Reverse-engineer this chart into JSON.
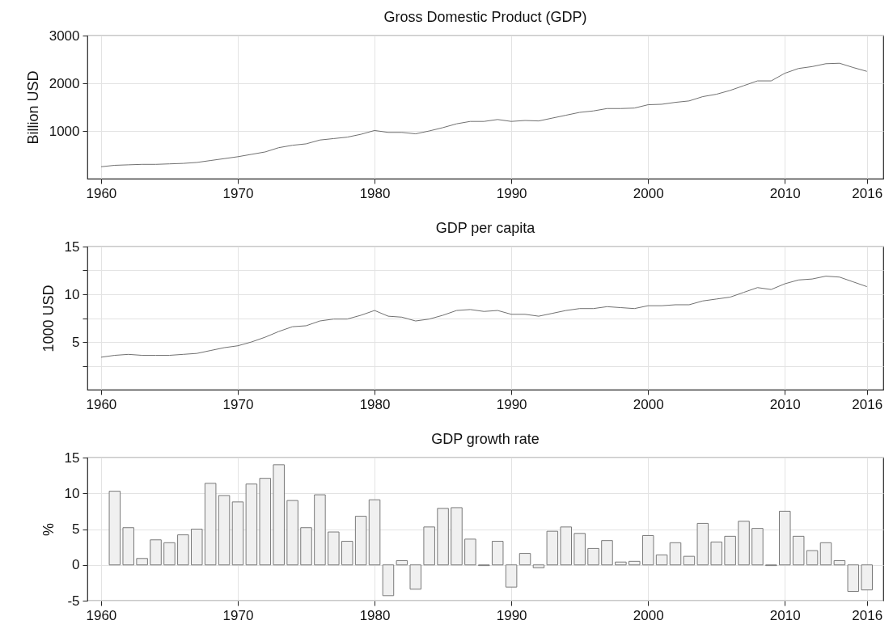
{
  "chart_data": [
    {
      "type": "line",
      "title": "Gross Domestic Product (GDP)",
      "ylabel": "Billion USD",
      "x": [
        1960,
        1961,
        1962,
        1963,
        1964,
        1965,
        1966,
        1967,
        1968,
        1969,
        1970,
        1971,
        1972,
        1973,
        1974,
        1975,
        1976,
        1977,
        1978,
        1979,
        1980,
        1981,
        1982,
        1983,
        1984,
        1985,
        1986,
        1987,
        1988,
        1989,
        1990,
        1991,
        1992,
        1993,
        1994,
        1995,
        1996,
        1997,
        1998,
        1999,
        2000,
        2001,
        2002,
        2003,
        2004,
        2005,
        2006,
        2007,
        2008,
        2009,
        2010,
        2011,
        2012,
        2013,
        2014,
        2015,
        2016
      ],
      "series": [
        {
          "color": "#707070",
          "values": [
            250,
            280,
            290,
            300,
            300,
            310,
            320,
            340,
            380,
            420,
            460,
            510,
            560,
            650,
            700,
            730,
            810,
            840,
            870,
            930,
            1010,
            970,
            970,
            940,
            1000,
            1070,
            1150,
            1200,
            1200,
            1240,
            1200,
            1220,
            1210,
            1270,
            1330,
            1390,
            1420,
            1470,
            1470,
            1480,
            1550,
            1560,
            1600,
            1630,
            1720,
            1770,
            1850,
            1950,
            2050,
            2050,
            2210,
            2310,
            2350,
            2410,
            2420,
            2330,
            2250
          ]
        }
      ],
      "xlim": [
        1959,
        2017.2
      ],
      "xticks": [
        1960,
        1970,
        1980,
        1990,
        2000,
        2010,
        2016
      ],
      "ylim": [
        0,
        3000
      ],
      "yticks": [
        1000,
        2000,
        3000
      ],
      "grid": true
    },
    {
      "type": "line",
      "title": "GDP per capita",
      "ylabel": "1000 USD",
      "x": [
        1960,
        1961,
        1962,
        1963,
        1964,
        1965,
        1966,
        1967,
        1968,
        1969,
        1970,
        1971,
        1972,
        1973,
        1974,
        1975,
        1976,
        1977,
        1978,
        1979,
        1980,
        1981,
        1982,
        1983,
        1984,
        1985,
        1986,
        1987,
        1988,
        1989,
        1990,
        1991,
        1992,
        1993,
        1994,
        1995,
        1996,
        1997,
        1998,
        1999,
        2000,
        2001,
        2002,
        2003,
        2004,
        2005,
        2006,
        2007,
        2008,
        2009,
        2010,
        2011,
        2012,
        2013,
        2014,
        2015,
        2016
      ],
      "series": [
        {
          "color": "#707070",
          "values": [
            3.4,
            3.6,
            3.7,
            3.6,
            3.6,
            3.6,
            3.7,
            3.8,
            4.1,
            4.4,
            4.6,
            5.0,
            5.5,
            6.1,
            6.6,
            6.7,
            7.2,
            7.4,
            7.4,
            7.8,
            8.3,
            7.7,
            7.6,
            7.2,
            7.4,
            7.8,
            8.3,
            8.4,
            8.2,
            8.3,
            7.9,
            7.9,
            7.7,
            8.0,
            8.3,
            8.5,
            8.5,
            8.7,
            8.6,
            8.5,
            8.8,
            8.8,
            8.9,
            8.9,
            9.3,
            9.5,
            9.7,
            10.2,
            10.7,
            10.5,
            11.1,
            11.5,
            11.6,
            11.9,
            11.8,
            11.3,
            10.8
          ]
        }
      ],
      "xlim": [
        1959,
        2017.2
      ],
      "xticks": [
        1960,
        1970,
        1980,
        1990,
        2000,
        2010,
        2016
      ],
      "ylim": [
        0,
        15
      ],
      "yticks": [
        {
          "value": 2.5,
          "label": null
        },
        5,
        {
          "value": 7.5,
          "label": null
        },
        10,
        {
          "value": 12.5,
          "label": null
        },
        15
      ],
      "grid": true
    },
    {
      "type": "bar",
      "title": "GDP growth rate",
      "ylabel": "%",
      "x": [
        1961,
        1962,
        1963,
        1964,
        1965,
        1966,
        1967,
        1968,
        1969,
        1970,
        1971,
        1972,
        1973,
        1974,
        1975,
        1976,
        1977,
        1978,
        1979,
        1980,
        1981,
        1982,
        1983,
        1984,
        1985,
        1986,
        1987,
        1988,
        1989,
        1990,
        1991,
        1992,
        1993,
        1994,
        1995,
        1996,
        1997,
        1998,
        1999,
        2000,
        2001,
        2002,
        2003,
        2004,
        2005,
        2006,
        2007,
        2008,
        2009,
        2010,
        2011,
        2012,
        2013,
        2014,
        2015,
        2016
      ],
      "series": [
        {
          "color": "#f0f0f0",
          "values": [
            10.3,
            5.2,
            0.9,
            3.5,
            3.1,
            4.2,
            5.0,
            11.4,
            9.7,
            8.8,
            11.3,
            12.1,
            14.0,
            9.0,
            5.2,
            9.8,
            4.6,
            3.3,
            6.8,
            9.1,
            -4.3,
            0.6,
            -3.4,
            5.3,
            7.9,
            8.0,
            3.6,
            -0.1,
            3.3,
            -3.1,
            1.6,
            -0.4,
            4.7,
            5.3,
            4.4,
            2.3,
            3.4,
            0.4,
            0.5,
            4.1,
            1.4,
            3.1,
            1.2,
            5.8,
            3.2,
            4.0,
            6.1,
            5.1,
            -0.1,
            7.5,
            4.0,
            2.0,
            3.1,
            0.6,
            -3.7,
            -3.5
          ]
        }
      ],
      "xlim": [
        1959,
        2017.2
      ],
      "xticks": [
        1960,
        1970,
        1980,
        1990,
        2000,
        2010,
        2016
      ],
      "ylim": [
        -5,
        15
      ],
      "yticks": [
        -5,
        0,
        5,
        10,
        15
      ],
      "grid": true
    }
  ]
}
